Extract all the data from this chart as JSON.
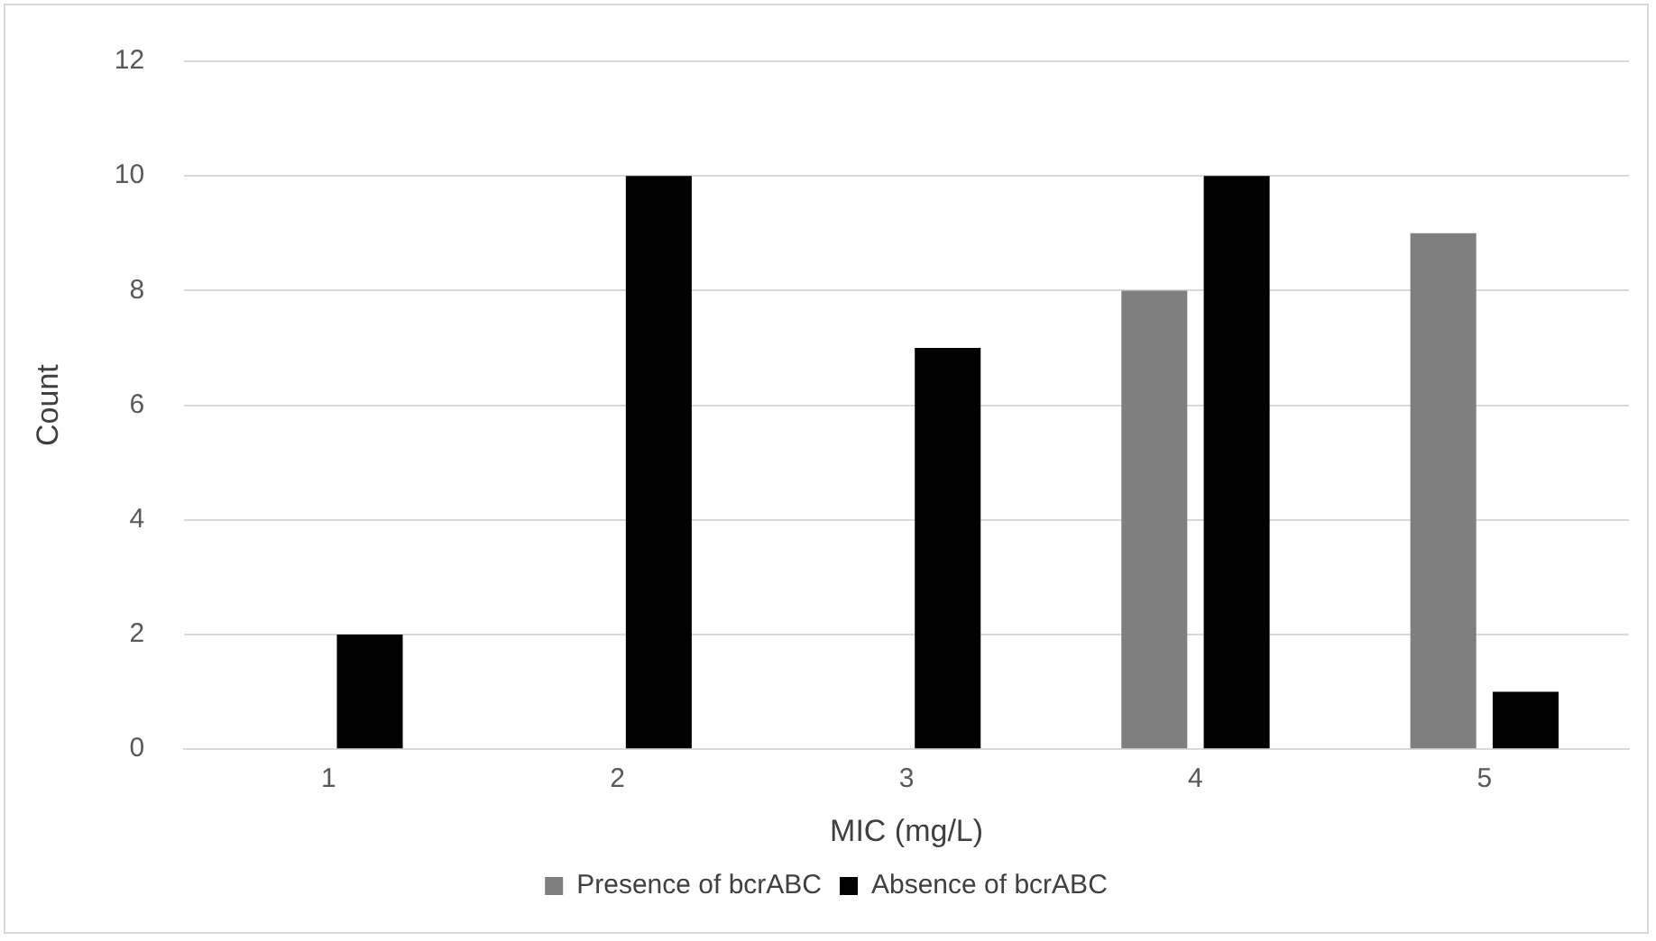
{
  "chart_data": {
    "type": "bar",
    "xlabel": "MIC (mg/L)",
    "ylabel": "Count",
    "categories": [
      "1",
      "2",
      "3",
      "4",
      "5"
    ],
    "series": [
      {
        "name": "Presence of bcrABC",
        "color": "#7f7f7f",
        "values": [
          0,
          0,
          0,
          8,
          9
        ]
      },
      {
        "name": "Absence of bcrABC",
        "color": "#000000",
        "values": [
          2,
          10,
          7,
          10,
          1
        ]
      }
    ],
    "ylim": [
      0,
      12
    ],
    "yticks": [
      0,
      2,
      4,
      6,
      8,
      10,
      12
    ],
    "grid": "y",
    "legend": "bottom"
  }
}
